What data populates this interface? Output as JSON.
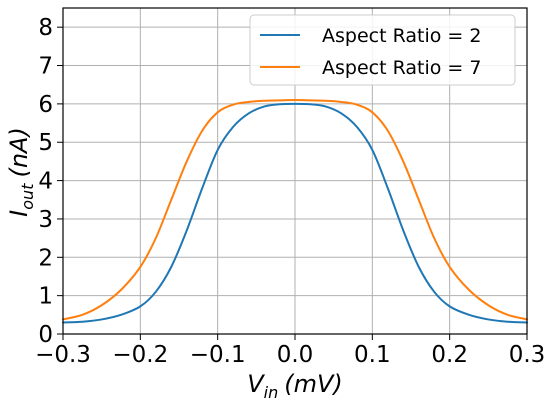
{
  "chart_data": {
    "type": "line",
    "xlabel": {
      "main": "V",
      "sub": "in",
      "unit": "(mV)"
    },
    "ylabel": {
      "main": "I",
      "sub": "out",
      "unit": "(nA)"
    },
    "xlim": [
      -0.3,
      0.3
    ],
    "ylim": [
      0,
      8.5
    ],
    "x_ticks": [
      "−0.3",
      "−0.2",
      "−0.1",
      "0.0",
      "0.1",
      "0.2",
      "0.3"
    ],
    "x_tick_values": [
      -0.3,
      -0.2,
      -0.1,
      0.0,
      0.1,
      0.2,
      0.3
    ],
    "y_ticks": [
      "0",
      "1",
      "2",
      "3",
      "4",
      "5",
      "6",
      "7",
      "8"
    ],
    "y_tick_values": [
      0,
      1,
      2,
      3,
      4,
      5,
      6,
      7,
      8
    ],
    "grid": true,
    "legend_position": "top-right",
    "series": [
      {
        "name": "Aspect Ratio = 2",
        "color": "#1f77b4",
        "x": [
          -0.3,
          -0.275,
          -0.25,
          -0.225,
          -0.2,
          -0.18,
          -0.16,
          -0.14,
          -0.12,
          -0.1,
          -0.08,
          -0.06,
          -0.04,
          -0.02,
          0.0,
          0.02,
          0.04,
          0.06,
          0.08,
          0.1,
          0.12,
          0.14,
          0.16,
          0.18,
          0.2,
          0.225,
          0.25,
          0.275,
          0.3
        ],
        "y": [
          0.3,
          0.32,
          0.38,
          0.5,
          0.72,
          1.1,
          1.75,
          2.7,
          3.8,
          4.8,
          5.4,
          5.75,
          5.93,
          5.99,
          6.0,
          5.99,
          5.93,
          5.75,
          5.4,
          4.8,
          3.8,
          2.7,
          1.75,
          1.1,
          0.72,
          0.5,
          0.38,
          0.32,
          0.3
        ]
      },
      {
        "name": "Aspect Ratio = 7",
        "color": "#ff7f0e",
        "x": [
          -0.3,
          -0.275,
          -0.25,
          -0.225,
          -0.2,
          -0.18,
          -0.16,
          -0.14,
          -0.12,
          -0.1,
          -0.08,
          -0.06,
          -0.04,
          -0.02,
          0.0,
          0.02,
          0.04,
          0.06,
          0.08,
          0.1,
          0.12,
          0.14,
          0.16,
          0.18,
          0.2,
          0.225,
          0.25,
          0.275,
          0.3
        ],
        "y": [
          0.38,
          0.5,
          0.75,
          1.15,
          1.75,
          2.5,
          3.5,
          4.5,
          5.3,
          5.78,
          5.98,
          6.05,
          6.08,
          6.09,
          6.1,
          6.09,
          6.08,
          6.05,
          5.98,
          5.78,
          5.3,
          4.5,
          3.5,
          2.5,
          1.75,
          1.15,
          0.75,
          0.5,
          0.38
        ]
      }
    ]
  }
}
